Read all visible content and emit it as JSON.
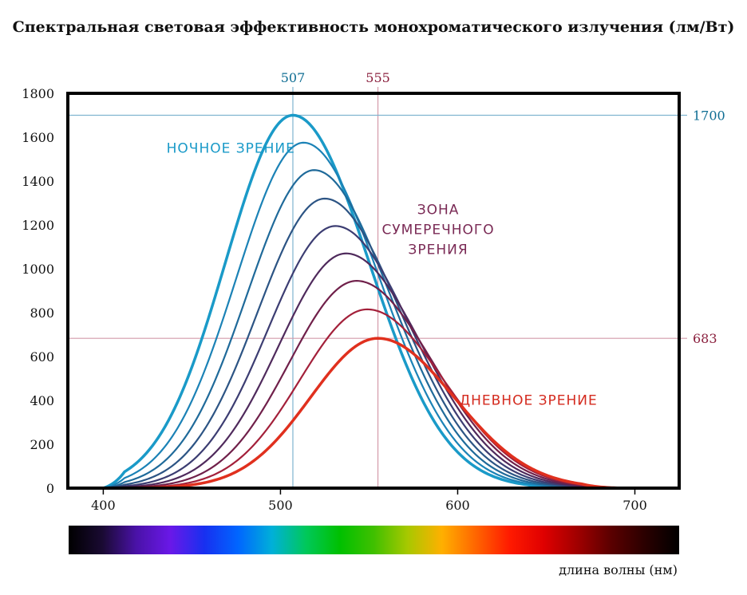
{
  "chart_data": {
    "type": "line",
    "title": "Спектральная световая эффективность монохроматического излучения (лм/Вт)",
    "xlabel": "длина волны (нм)",
    "ylabel": "",
    "xlim": [
      380,
      725
    ],
    "ylim": [
      0,
      1800
    ],
    "x_ticks": [
      "400",
      "500",
      "600",
      "700"
    ],
    "y_ticks": [
      "0",
      "200",
      "400",
      "600",
      "800",
      "1000",
      "1200",
      "1400",
      "1600",
      "1800"
    ],
    "grid": false,
    "reference_lines": {
      "vertical": [
        {
          "value": 507,
          "label": "507",
          "color": "#7fb4cf"
        },
        {
          "value": 555,
          "label": "555",
          "color": "#d49aaa"
        }
      ],
      "horizontal": [
        {
          "value": 1700,
          "label": "1700",
          "color": "#7fb4cf"
        },
        {
          "value": 683,
          "label": "683",
          "color": "#d49aaa"
        }
      ]
    },
    "annotations": [
      {
        "lines": [
          "НОЧНОЕ ЗРЕНИЕ"
        ],
        "color": "#1a9ac8",
        "x": 472,
        "y": 1530
      },
      {
        "lines": [
          "ЗОНА",
          "СУМЕРЕЧНОГО",
          "ЗРЕНИЯ"
        ],
        "color": "#7a2a55",
        "x": 589,
        "y": 1250
      },
      {
        "lines": [
          "ДНЕВНОЕ ЗРЕНИЕ"
        ],
        "color": "#d42a1e",
        "x": 640,
        "y": 380
      }
    ],
    "curve_shape": {
      "start_nm": 400,
      "end_nm": 695,
      "left_width_nm": 38,
      "right_width_nm": 43
    },
    "series": [
      {
        "name": "ночное зрение",
        "peak_x": 507,
        "peak_y": 1700,
        "color": "#1a9ac8",
        "width": 3.5
      },
      {
        "peak_x": 513,
        "peak_y": 1575,
        "color": "#1b82b6",
        "width": 2.2
      },
      {
        "peak_x": 519,
        "peak_y": 1450,
        "color": "#1f6a9a",
        "width": 2.2
      },
      {
        "peak_x": 525,
        "peak_y": 1320,
        "color": "#2c5484",
        "width": 2.2
      },
      {
        "peak_x": 531,
        "peak_y": 1195,
        "color": "#3c3d72",
        "width": 2.2
      },
      {
        "peak_x": 537,
        "peak_y": 1070,
        "color": "#4f2a5c",
        "width": 2.2
      },
      {
        "peak_x": 543,
        "peak_y": 945,
        "color": "#70204a",
        "width": 2.2
      },
      {
        "peak_x": 549,
        "peak_y": 815,
        "color": "#a3203a",
        "width": 2.2
      },
      {
        "name": "дневное зрение",
        "peak_x": 555,
        "peak_y": 683,
        "color": "#e0301e",
        "width": 3.5
      }
    ],
    "spectrum_bar": {
      "colors": [
        "#000000",
        "#1a0a33",
        "#4a12a8",
        "#6a18e8",
        "#1830f0",
        "#0066ff",
        "#00b0d8",
        "#00c85a",
        "#00c000",
        "#40c000",
        "#a8c800",
        "#ffb000",
        "#ff6600",
        "#ff1a00",
        "#e00000",
        "#a00000",
        "#5a0000",
        "#2a0000",
        "#000000"
      ]
    }
  }
}
